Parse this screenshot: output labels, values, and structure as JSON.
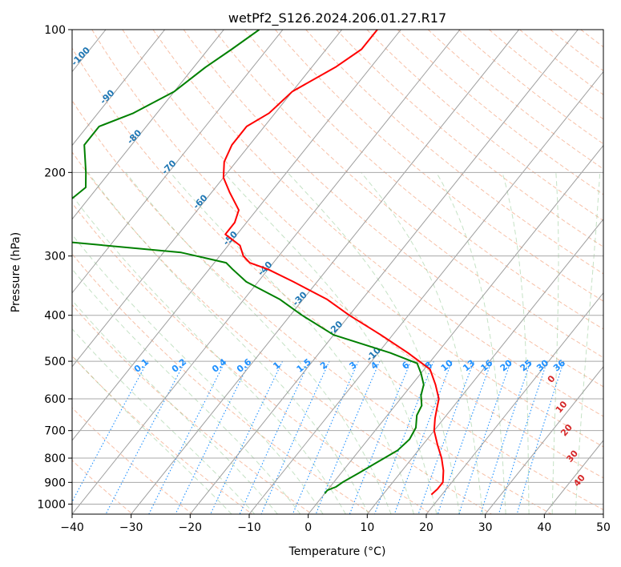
{
  "chart_data": {
    "type": "line",
    "subtype": "skew-T log-P diagram",
    "title": "wetPf2_S126.2024.206.01.27.R17",
    "xlabel": "Temperature (°C)",
    "ylabel": "Pressure (hPa)",
    "xlim": [
      -40,
      50
    ],
    "ylim": [
      1050,
      100
    ],
    "y_scale": "log",
    "x_ticks": [
      -40,
      -30,
      -20,
      -10,
      0,
      10,
      20,
      30,
      40,
      50
    ],
    "x_tick_labels": [
      "−40",
      "−30",
      "−20",
      "−10",
      "0",
      "10",
      "20",
      "30",
      "40",
      "50"
    ],
    "y_ticks": [
      100,
      200,
      300,
      400,
      500,
      600,
      700,
      800,
      900,
      1000
    ],
    "y_tick_labels": [
      "100",
      "200",
      "300",
      "400",
      "500",
      "600",
      "700",
      "800",
      "900",
      "1000"
    ],
    "isotherm_labels": [
      {
        "t": -100,
        "p": 115,
        "text": "-100"
      },
      {
        "t": -90,
        "p": 140,
        "text": "-90"
      },
      {
        "t": -80,
        "p": 170,
        "text": "-80"
      },
      {
        "t": -70,
        "p": 197,
        "text": "-70"
      },
      {
        "t": -60,
        "p": 233,
        "text": "-60"
      },
      {
        "t": -50,
        "p": 278,
        "text": "-50"
      },
      {
        "t": -40,
        "p": 322,
        "text": "-40"
      },
      {
        "t": -30,
        "p": 373,
        "text": "-30"
      },
      {
        "t": -20,
        "p": 430,
        "text": "-20"
      },
      {
        "t": -10,
        "p": 488,
        "text": "-10"
      }
    ],
    "mixing_ratio_labels": [
      "0.1",
      "0.2",
      "0.4",
      "0.6",
      "1",
      "1.5",
      "2",
      "3",
      "4",
      "6",
      "8",
      "10",
      "13",
      "16",
      "20",
      "25",
      "30",
      "36"
    ],
    "moist_adiabat_labels": [
      "0",
      "10",
      "20",
      "30",
      "40"
    ],
    "series": [
      {
        "role": "temperature",
        "color": "#ff0000",
        "points": [
          {
            "p": 100,
            "t": -54
          },
          {
            "p": 110,
            "t": -54
          },
          {
            "p": 120,
            "t": -56
          },
          {
            "p": 135,
            "t": -60
          },
          {
            "p": 150,
            "t": -61
          },
          {
            "p": 160,
            "t": -63
          },
          {
            "p": 175,
            "t": -63
          },
          {
            "p": 190,
            "t": -62
          },
          {
            "p": 205,
            "t": -60
          },
          {
            "p": 220,
            "t": -57
          },
          {
            "p": 240,
            "t": -53
          },
          {
            "p": 255,
            "t": -52
          },
          {
            "p": 270,
            "t": -52
          },
          {
            "p": 285,
            "t": -48
          },
          {
            "p": 300,
            "t": -46
          },
          {
            "p": 310,
            "t": -44
          },
          {
            "p": 320,
            "t": -40
          },
          {
            "p": 340,
            "t": -34
          },
          {
            "p": 370,
            "t": -26
          },
          {
            "p": 400,
            "t": -20
          },
          {
            "p": 440,
            "t": -12
          },
          {
            "p": 480,
            "t": -5
          },
          {
            "p": 520,
            "t": 1
          },
          {
            "p": 560,
            "t": 4
          },
          {
            "p": 600,
            "t": 6.5
          },
          {
            "p": 630,
            "t": 7.5
          },
          {
            "p": 660,
            "t": 8.5
          },
          {
            "p": 700,
            "t": 10
          },
          {
            "p": 750,
            "t": 12.5
          },
          {
            "p": 800,
            "t": 15
          },
          {
            "p": 850,
            "t": 17
          },
          {
            "p": 900,
            "t": 18.5
          },
          {
            "p": 930,
            "t": 18.5
          },
          {
            "p": 955,
            "t": 18.2
          }
        ]
      },
      {
        "role": "dewpoint",
        "color": "#008000",
        "points": [
          {
            "p": 100,
            "t": -74
          },
          {
            "p": 110,
            "t": -76
          },
          {
            "p": 120,
            "t": -78
          },
          {
            "p": 135,
            "t": -80
          },
          {
            "p": 150,
            "t": -84
          },
          {
            "p": 160,
            "t": -88
          },
          {
            "p": 175,
            "t": -88
          },
          {
            "p": 200,
            "t": -84
          },
          {
            "p": 215,
            "t": -82
          },
          {
            "p": 230,
            "t": -83
          },
          {
            "p": 245,
            "t": -94
          },
          {
            "p": 250,
            "t": -118
          },
          {
            "p": 268,
            "t": -124
          },
          {
            "p": 272,
            "t": -100
          },
          {
            "p": 280,
            "t": -78
          },
          {
            "p": 295,
            "t": -57
          },
          {
            "p": 310,
            "t": -48
          },
          {
            "p": 320,
            "t": -46
          },
          {
            "p": 340,
            "t": -42
          },
          {
            "p": 370,
            "t": -34
          },
          {
            "p": 400,
            "t": -28
          },
          {
            "p": 440,
            "t": -20
          },
          {
            "p": 480,
            "t": -8
          },
          {
            "p": 505,
            "t": -2
          },
          {
            "p": 530,
            "t": 0
          },
          {
            "p": 560,
            "t": 2
          },
          {
            "p": 590,
            "t": 3
          },
          {
            "p": 620,
            "t": 4.5
          },
          {
            "p": 650,
            "t": 5
          },
          {
            "p": 690,
            "t": 6.5
          },
          {
            "p": 730,
            "t": 7
          },
          {
            "p": 770,
            "t": 6.5
          },
          {
            "p": 820,
            "t": 4.5
          },
          {
            "p": 860,
            "t": 3
          },
          {
            "p": 900,
            "t": 1.5
          },
          {
            "p": 920,
            "t": 1
          },
          {
            "p": 935,
            "t": 0
          },
          {
            "p": 950,
            "t": 0
          }
        ]
      }
    ]
  }
}
